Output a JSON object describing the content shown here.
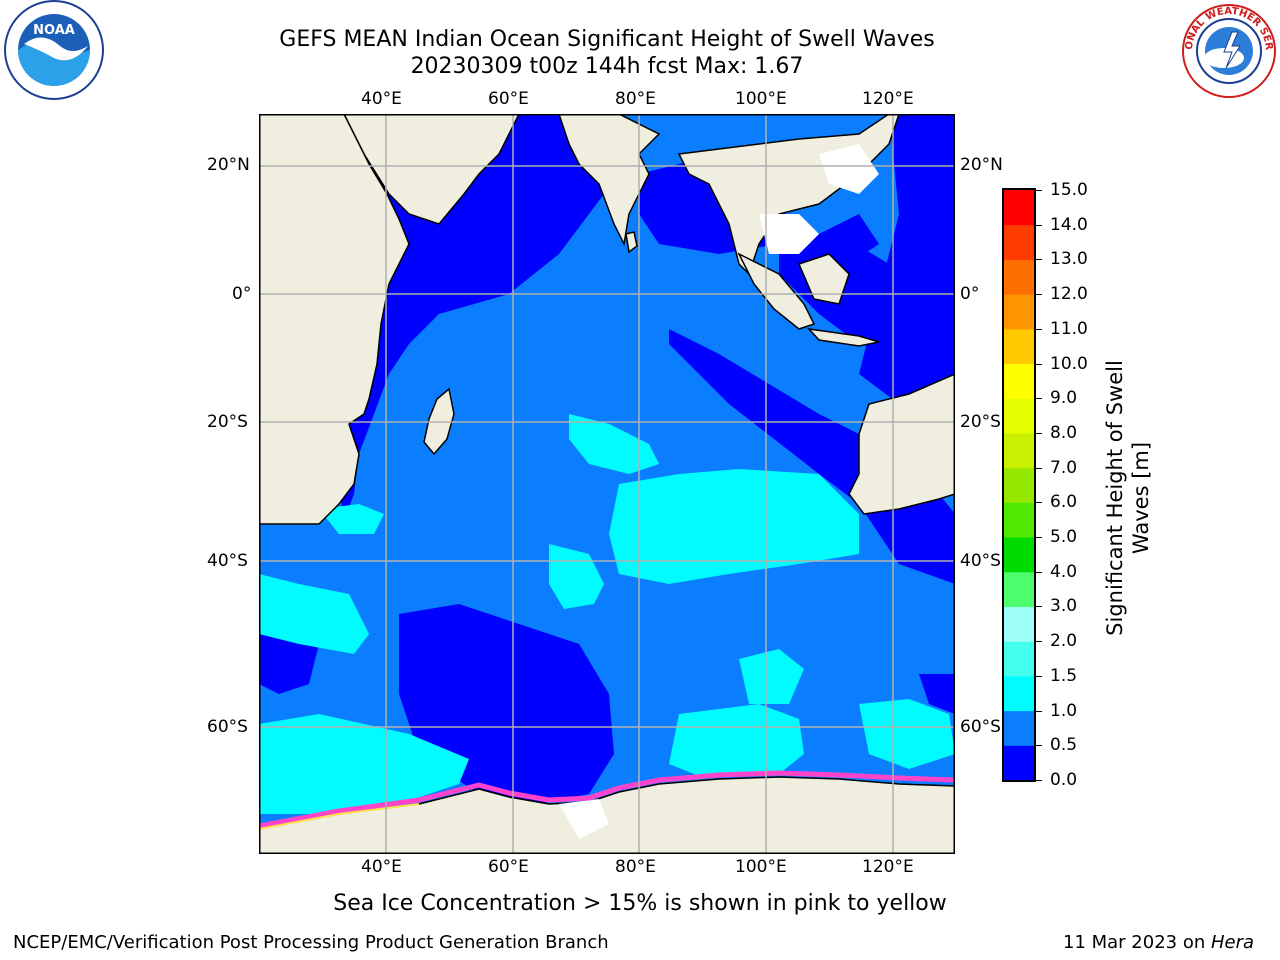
{
  "title_line1": "GEFS MEAN Indian Ocean Significant Height of Swell Waves",
  "title_line2": "20230309 t00z 144h fcst   Max: 1.67",
  "lon_labels": [
    "40°E",
    "60°E",
    "80°E",
    "100°E",
    "120°E"
  ],
  "lat_labels": [
    "20°N",
    "0°",
    "20°S",
    "40°S",
    "60°S"
  ],
  "colorbar": {
    "title_line1": "Significant Height of Swell",
    "title_line2": "Waves [m]",
    "ticks": [
      "0.0",
      "0.5",
      "1.0",
      "1.5",
      "2.0",
      "3.0",
      "4.0",
      "5.0",
      "6.0",
      "7.0",
      "8.0",
      "9.0",
      "10.0",
      "11.0",
      "12.0",
      "13.0",
      "14.0",
      "15.0"
    ],
    "colors": [
      "#0000ff",
      "#0a7eff",
      "#00fcff",
      "#45ffee",
      "#a0fff8",
      "#4dff6e",
      "#00dc00",
      "#50e800",
      "#96e800",
      "#c8f000",
      "#e6ff00",
      "#ffff00",
      "#ffc800",
      "#ff9600",
      "#ff6e00",
      "#ff3c00",
      "#ff0000"
    ]
  },
  "caption": "Sea Ice Concentration > 15% is shown in pink to yellow",
  "footer_left": "NCEP/EMC/Verification Post Processing Product Generation Branch",
  "footer_date": "11 Mar 2023 on",
  "footer_host": "Hera",
  "logo_left": "NOAA",
  "logo_right": "NATIONAL WEATHER SERVICE"
}
